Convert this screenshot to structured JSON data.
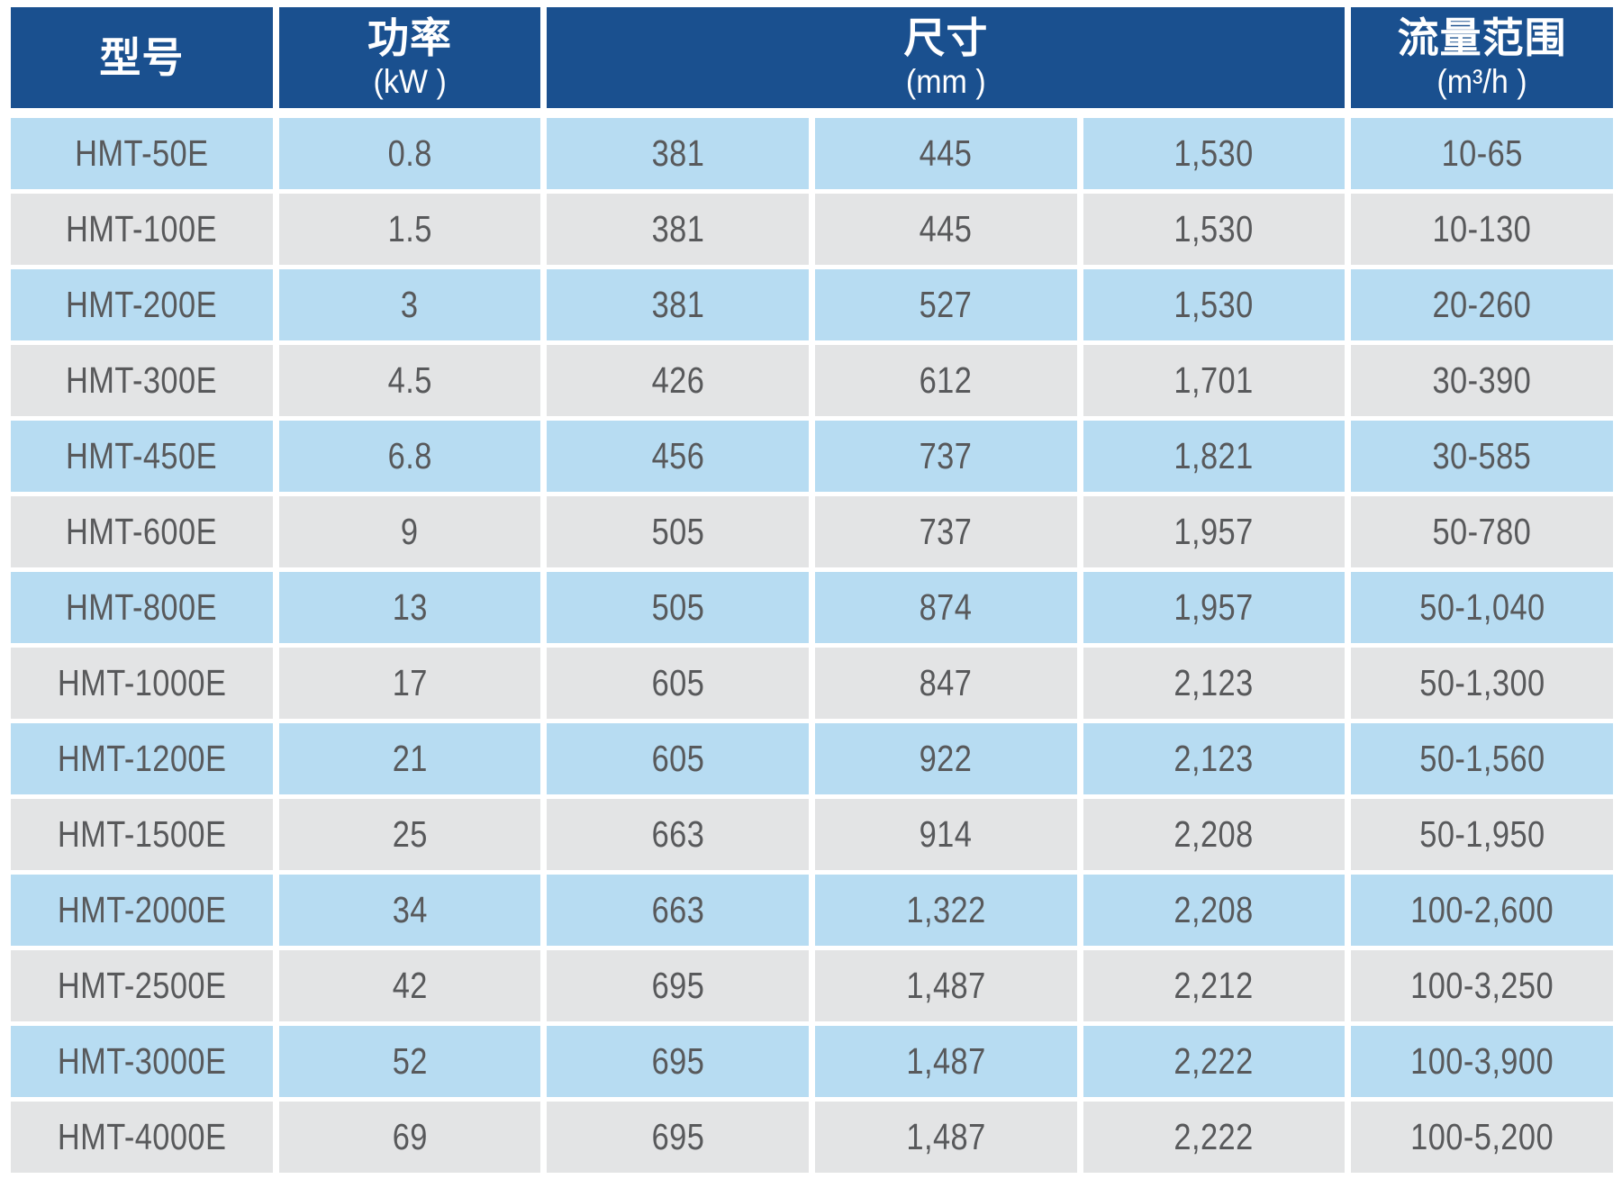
{
  "colors": {
    "header_bg": "#1A508F",
    "header_text": "#FFFFFF",
    "row_blue": "#B7DCF2",
    "row_gray": "#E3E4E5",
    "cell_text": "#58595B",
    "page_bg": "#FFFFFF"
  },
  "header": {
    "model": {
      "title": "型号",
      "unit": ""
    },
    "power": {
      "title": "功率",
      "unit": "(kW )"
    },
    "dimensions": {
      "title": "尺寸",
      "unit": "(mm )"
    },
    "flow": {
      "title": "流量范围",
      "unit": "(m³/h )"
    }
  },
  "rows": [
    {
      "model": "HMT-50E",
      "power": "0.8",
      "dim1": "381",
      "dim2": "445",
      "dim3": "1,530",
      "flow": "10-65"
    },
    {
      "model": "HMT-100E",
      "power": "1.5",
      "dim1": "381",
      "dim2": "445",
      "dim3": "1,530",
      "flow": "10-130"
    },
    {
      "model": "HMT-200E",
      "power": "3",
      "dim1": "381",
      "dim2": "527",
      "dim3": "1,530",
      "flow": "20-260"
    },
    {
      "model": "HMT-300E",
      "power": "4.5",
      "dim1": "426",
      "dim2": "612",
      "dim3": "1,701",
      "flow": "30-390"
    },
    {
      "model": "HMT-450E",
      "power": "6.8",
      "dim1": "456",
      "dim2": "737",
      "dim3": "1,821",
      "flow": "30-585"
    },
    {
      "model": "HMT-600E",
      "power": "9",
      "dim1": "505",
      "dim2": "737",
      "dim3": "1,957",
      "flow": "50-780"
    },
    {
      "model": "HMT-800E",
      "power": "13",
      "dim1": "505",
      "dim2": "874",
      "dim3": "1,957",
      "flow": "50-1,040"
    },
    {
      "model": "HMT-1000E",
      "power": "17",
      "dim1": "605",
      "dim2": "847",
      "dim3": "2,123",
      "flow": "50-1,300"
    },
    {
      "model": "HMT-1200E",
      "power": "21",
      "dim1": "605",
      "dim2": "922",
      "dim3": "2,123",
      "flow": "50-1,560"
    },
    {
      "model": "HMT-1500E",
      "power": "25",
      "dim1": "663",
      "dim2": "914",
      "dim3": "2,208",
      "flow": "50-1,950"
    },
    {
      "model": "HMT-2000E",
      "power": "34",
      "dim1": "663",
      "dim2": "1,322",
      "dim3": "2,208",
      "flow": "100-2,600"
    },
    {
      "model": "HMT-2500E",
      "power": "42",
      "dim1": "695",
      "dim2": "1,487",
      "dim3": "2,212",
      "flow": "100-3,250"
    },
    {
      "model": "HMT-3000E",
      "power": "52",
      "dim1": "695",
      "dim2": "1,487",
      "dim3": "2,222",
      "flow": "100-3,900"
    },
    {
      "model": "HMT-4000E",
      "power": "69",
      "dim1": "695",
      "dim2": "1,487",
      "dim3": "2,222",
      "flow": "100-5,200"
    }
  ]
}
